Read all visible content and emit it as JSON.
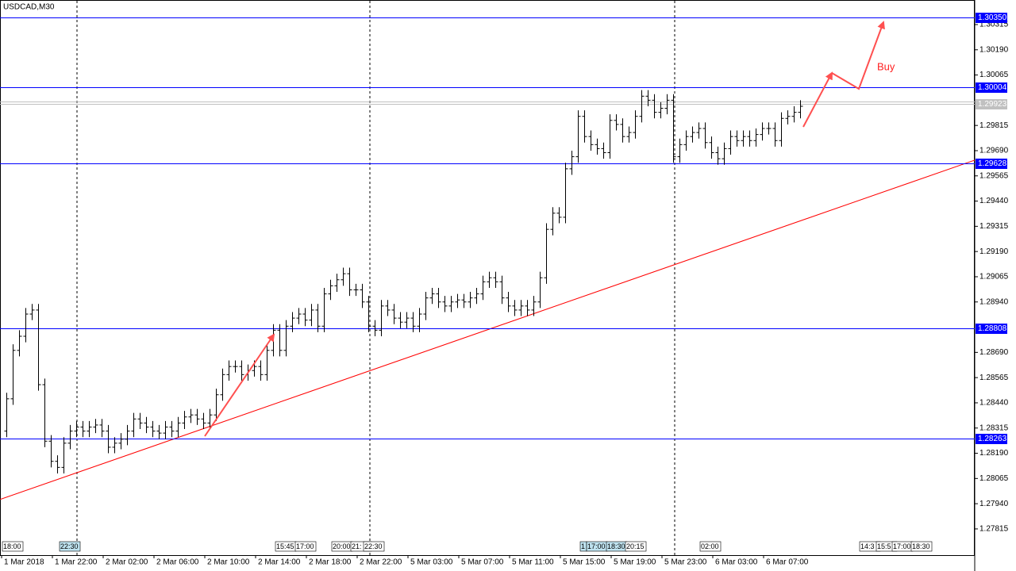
{
  "chart_data": {
    "type": "ohlc",
    "title": "USDCAD,M30",
    "annotation": "Buy",
    "open": [
      1.283,
      1.2846,
      1.287,
      1.2877,
      1.2888,
      1.289,
      1.2853,
      1.2825,
      1.2815,
      1.2812,
      1.2824,
      1.283,
      1.2832,
      1.283,
      1.2832,
      1.2833,
      1.283,
      1.2822,
      1.2824,
      1.2826,
      1.283,
      1.2836,
      1.2834,
      1.2832,
      1.283,
      1.2829,
      1.2832,
      1.283,
      1.2834,
      1.2837,
      1.2838,
      1.2836,
      1.2834,
      1.2838,
      1.2848,
      1.2858,
      1.2862,
      1.2862,
      1.2858,
      1.286,
      1.2862,
      1.2858,
      1.287,
      1.288,
      1.287,
      1.2882,
      1.2886,
      1.2888,
      1.2885,
      1.289,
      1.2882,
      1.2898,
      1.2902,
      1.2905,
      1.2908,
      1.29,
      1.29,
      1.2894,
      1.2882,
      1.288,
      1.2892,
      1.289,
      1.2886,
      1.2884,
      1.2886,
      1.2882,
      1.2888,
      1.2896,
      1.2898,
      1.2894,
      1.2892,
      1.2894,
      1.2895,
      1.2894,
      1.2896,
      1.2898,
      1.2904,
      1.2906,
      1.2904,
      1.2896,
      1.2892,
      1.289,
      1.2892,
      1.289,
      1.2894,
      1.2906,
      1.293,
      1.2938,
      1.2936,
      1.296,
      1.2966,
      1.2986,
      1.2976,
      1.2972,
      1.297,
      1.2968,
      1.2984,
      1.2982,
      1.2976,
      1.2978,
      1.2986,
      1.2996,
      1.2994,
      1.2988,
      1.299,
      1.2994,
      1.2966,
      1.2972,
      1.2976,
      1.2978,
      1.298,
      1.2973,
      1.2968,
      1.2965,
      1.297,
      1.2976,
      1.2974,
      1.2976,
      1.2974,
      1.2977,
      1.298,
      1.298,
      1.2974,
      1.2985,
      1.2986,
      1.2988
    ],
    "high": [
      1.2849,
      1.2873,
      1.288,
      1.2891,
      1.2893,
      1.2893,
      1.2856,
      1.2828,
      1.2818,
      1.2827,
      1.2833,
      1.2835,
      1.2835,
      1.2835,
      1.2836,
      1.2836,
      1.2833,
      1.2827,
      1.2829,
      1.2833,
      1.2839,
      1.2839,
      1.2837,
      1.2835,
      1.2833,
      1.2835,
      1.2835,
      1.2837,
      1.284,
      1.2841,
      1.2841,
      1.2839,
      1.2841,
      1.2851,
      1.2861,
      1.2865,
      1.2865,
      1.2865,
      1.2863,
      1.2865,
      1.2865,
      1.2873,
      1.2883,
      1.2883,
      1.2885,
      1.2889,
      1.2891,
      1.2891,
      1.2893,
      1.2893,
      1.2901,
      1.2905,
      1.2908,
      1.2911,
      1.2911,
      1.2903,
      1.2903,
      1.2897,
      1.2885,
      1.2895,
      1.2895,
      1.2893,
      1.2889,
      1.2889,
      1.2889,
      1.2891,
      1.2899,
      1.2901,
      1.2901,
      1.2897,
      1.2897,
      1.2898,
      1.2898,
      1.2899,
      1.2901,
      1.2907,
      1.2909,
      1.2909,
      1.2907,
      1.2899,
      1.2895,
      1.2895,
      1.2895,
      1.2897,
      1.2909,
      1.2933,
      1.2941,
      1.2941,
      1.2963,
      1.2969,
      1.2989,
      1.2989,
      1.2979,
      1.2975,
      1.2973,
      1.2987,
      1.2987,
      1.2985,
      1.2981,
      1.2989,
      1.2999,
      1.2999,
      1.2997,
      1.2993,
      1.2997,
      1.2997,
      1.2975,
      1.2979,
      1.2981,
      1.2983,
      1.2983,
      1.2976,
      1.2971,
      1.2973,
      1.2979,
      1.2979,
      1.2979,
      1.2979,
      1.298,
      1.2983,
      1.2983,
      1.2983,
      1.2988,
      1.2989,
      1.2991,
      1.2994
    ],
    "low": [
      1.2827,
      1.2843,
      1.2867,
      1.2874,
      1.2885,
      1.285,
      1.2822,
      1.2812,
      1.2809,
      1.2809,
      1.2821,
      1.2827,
      1.2827,
      1.2827,
      1.2829,
      1.2827,
      1.2819,
      1.2819,
      1.2821,
      1.2823,
      1.2827,
      1.2831,
      1.2829,
      1.2827,
      1.2826,
      1.2826,
      1.2827,
      1.2827,
      1.2831,
      1.2834,
      1.2833,
      1.2831,
      1.2831,
      1.2835,
      1.2845,
      1.2855,
      1.2859,
      1.2855,
      1.2855,
      1.2857,
      1.2855,
      1.2855,
      1.2867,
      1.2867,
      1.2867,
      1.2879,
      1.2883,
      1.2882,
      1.2882,
      1.2879,
      1.2879,
      1.2895,
      1.2899,
      1.2902,
      1.2897,
      1.2897,
      1.2891,
      1.2879,
      1.2877,
      1.2877,
      1.2887,
      1.2883,
      1.2881,
      1.2881,
      1.2879,
      1.2879,
      1.2885,
      1.2893,
      1.2891,
      1.2889,
      1.2889,
      1.2891,
      1.2891,
      1.2891,
      1.2893,
      1.2895,
      1.2901,
      1.2901,
      1.2893,
      1.2889,
      1.2887,
      1.2887,
      1.2887,
      1.2887,
      1.2891,
      1.2903,
      1.2927,
      1.2933,
      1.2933,
      1.2957,
      1.2963,
      1.2973,
      1.2969,
      1.2967,
      1.2965,
      1.2965,
      1.2979,
      1.2973,
      1.2973,
      1.2975,
      1.2983,
      1.2991,
      1.2985,
      1.2985,
      1.2987,
      1.2963,
      1.2963,
      1.2969,
      1.2973,
      1.2975,
      1.297,
      1.2965,
      1.2962,
      1.2962,
      1.2967,
      1.2971,
      1.2971,
      1.2971,
      1.2971,
      1.2974,
      1.2977,
      1.2971,
      1.2971,
      1.2982,
      1.2983,
      1.2985
    ],
    "close": [
      1.2846,
      1.287,
      1.2877,
      1.2888,
      1.289,
      1.2853,
      1.2825,
      1.2815,
      1.2812,
      1.2824,
      1.283,
      1.2832,
      1.283,
      1.2832,
      1.2833,
      1.283,
      1.2822,
      1.2824,
      1.2826,
      1.283,
      1.2836,
      1.2834,
      1.2832,
      1.283,
      1.2829,
      1.2832,
      1.283,
      1.2834,
      1.2837,
      1.2838,
      1.2836,
      1.2834,
      1.2838,
      1.2848,
      1.2858,
      1.2862,
      1.2862,
      1.2858,
      1.286,
      1.2862,
      1.2858,
      1.287,
      1.288,
      1.287,
      1.2882,
      1.2886,
      1.2888,
      1.2885,
      1.289,
      1.2882,
      1.2898,
      1.2902,
      1.2905,
      1.2908,
      1.29,
      1.29,
      1.2894,
      1.2882,
      1.288,
      1.2892,
      1.289,
      1.2886,
      1.2884,
      1.2886,
      1.2882,
      1.2888,
      1.2896,
      1.2898,
      1.2894,
      1.2892,
      1.2894,
      1.2895,
      1.2894,
      1.2896,
      1.2898,
      1.2904,
      1.2906,
      1.2904,
      1.2896,
      1.2892,
      1.289,
      1.2892,
      1.289,
      1.2894,
      1.2906,
      1.293,
      1.2938,
      1.2936,
      1.296,
      1.2966,
      1.2986,
      1.2976,
      1.2972,
      1.297,
      1.2968,
      1.2984,
      1.2982,
      1.2976,
      1.2978,
      1.2986,
      1.2996,
      1.2994,
      1.2988,
      1.299,
      1.2994,
      1.2966,
      1.2972,
      1.2976,
      1.2978,
      1.298,
      1.2973,
      1.2968,
      1.2965,
      1.297,
      1.2976,
      1.2974,
      1.2976,
      1.2974,
      1.2977,
      1.298,
      1.298,
      1.2974,
      1.2985,
      1.2986,
      1.2988,
      1.2991
    ],
    "color": "#000000",
    "xlim": [
      -1,
      152.5
    ],
    "xticks": [
      {
        "value": 0,
        "label": "1 Mar 2018"
      },
      {
        "value": 8,
        "label": "1 Mar 22:00"
      },
      {
        "value": 16,
        "label": "2 Mar 02:00"
      },
      {
        "value": 24,
        "label": "2 Mar 06:00"
      },
      {
        "value": 32,
        "label": "2 Mar 10:00"
      },
      {
        "value": 40,
        "label": "2 Mar 14:00"
      },
      {
        "value": 48,
        "label": "2 Mar 18:00"
      },
      {
        "value": 56,
        "label": "2 Mar 22:00"
      },
      {
        "value": 64,
        "label": "5 Mar 03:00"
      },
      {
        "value": 72,
        "label": "5 Mar 07:00"
      },
      {
        "value": 80,
        "label": "5 Mar 11:00"
      },
      {
        "value": 88,
        "label": "5 Mar 15:00"
      },
      {
        "value": 96,
        "label": "5 Mar 19:00"
      },
      {
        "value": 104,
        "label": "5 Mar 23:00"
      },
      {
        "value": 112,
        "label": "6 Mar 03:00"
      },
      {
        "value": 120,
        "label": "6 Mar 07:00"
      }
    ],
    "ylim": [
      1.27685,
      1.30425
    ],
    "yticks": [
      1.30315,
      {
        "value": 1.3019,
        "label": "1.30190"
      },
      1.30065,
      1.29815,
      {
        "value": 1.2969,
        "label": "1.29690"
      },
      1.29565,
      {
        "value": 1.2944,
        "label": "1.29440"
      },
      1.29315,
      {
        "value": 1.2919,
        "label": "1.29190"
      },
      1.29065,
      {
        "value": 1.2894,
        "label": "1.28940"
      },
      {
        "value": 1.2869,
        "label": "1.28690"
      },
      1.28565,
      {
        "value": 1.2844,
        "label": "1.28440"
      },
      1.28315,
      {
        "value": 1.2819,
        "label": "1.28190"
      },
      1.28065,
      {
        "value": 1.2794,
        "label": "1.27940"
      },
      1.27815
    ],
    "hlines": [
      {
        "value": 1.3035,
        "label": "1.30350"
      },
      1.30004,
      1.29628,
      1.28808,
      1.28263
    ],
    "hline_color": "#0000ff",
    "current_price": 1.29923,
    "trendline": {
      "x": [
        -1,
        152.5
      ],
      "y": [
        1.27961,
        1.29643
      ],
      "color": "#ff0000"
    },
    "time_markers": [
      "18:00",
      "22:30",
      "15:45",
      "17:00",
      "20:00",
      "21:",
      "22:30",
      "1",
      "17:00",
      "18:30",
      "20:15",
      "02:00",
      "14:3",
      "15:5",
      "17:00",
      "18:30"
    ]
  }
}
